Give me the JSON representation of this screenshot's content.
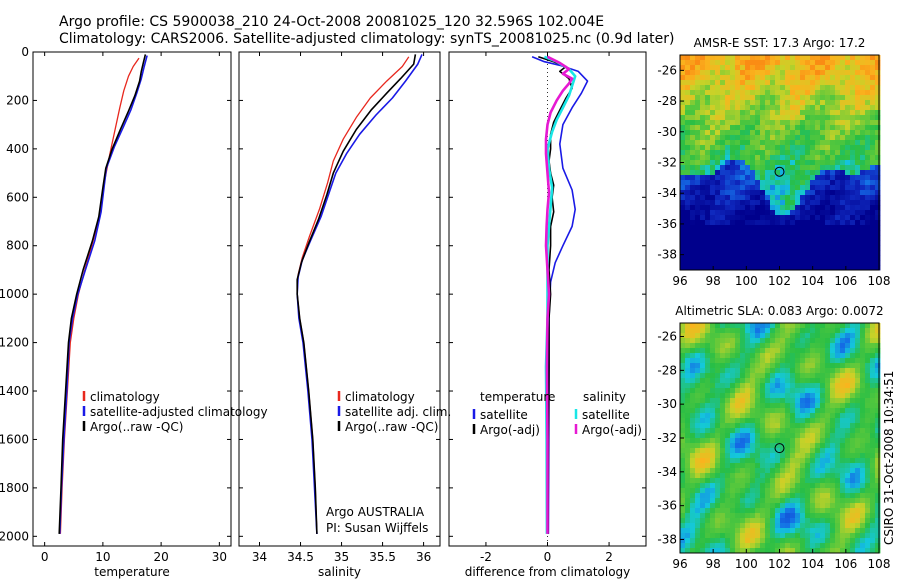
{
  "header": {
    "line1": "Argo profile: CS 5900038_210 24-Oct-2008 20081025_120 32.596S 102.004E",
    "line2": "Climatology: CARS2006. Satellite-adjusted climatology: synTS_20081025.nc (0.9d later)"
  },
  "credit": {
    "line1": "Argo AUSTRALIA",
    "line2": "PI: Susan Wijffels"
  },
  "side_stamp": "CSIRO 31-Oct-2008 10:34:51",
  "colors": {
    "red": "#e8281e",
    "blue": "#1a1ae6",
    "black": "#000000",
    "cyan": "#19e6e6",
    "magenta": "#e619d2"
  },
  "chart_data": [
    {
      "type": "line",
      "xlabel": "temperature",
      "xlim": [
        -2,
        32
      ],
      "xticks": [
        0,
        10,
        20,
        30
      ],
      "ylim": [
        2040,
        0
      ],
      "yticks": [
        0,
        200,
        400,
        600,
        800,
        1000,
        1200,
        1400,
        1600,
        1800,
        2000
      ],
      "legend": [
        "climatology",
        "satellite-adjusted climatology",
        "Argo(..raw -QC)"
      ],
      "series": [
        {
          "name": "climatology",
          "color": "red",
          "width": 1.3,
          "points": [
            [
              16.2,
              25
            ],
            [
              15.2,
              60
            ],
            [
              14.4,
              100
            ],
            [
              13.6,
              160
            ],
            [
              12.9,
              230
            ],
            [
              12.1,
              320
            ],
            [
              11.2,
              420
            ],
            [
              10.4,
              520
            ],
            [
              9.9,
              600
            ],
            [
              9.2,
              700
            ],
            [
              8.1,
              800
            ],
            [
              6.9,
              900
            ],
            [
              5.8,
              1000
            ],
            [
              5.0,
              1100
            ],
            [
              4.4,
              1200
            ],
            [
              3.9,
              1400
            ],
            [
              3.4,
              1600
            ],
            [
              3.0,
              1800
            ],
            [
              2.7,
              1990
            ]
          ]
        },
        {
          "name": "satellite-adjusted climatology",
          "color": "blue",
          "width": 1.6,
          "points": [
            [
              17.6,
              15
            ],
            [
              17.1,
              60
            ],
            [
              16.6,
              110
            ],
            [
              15.8,
              170
            ],
            [
              14.8,
              240
            ],
            [
              13.5,
              310
            ],
            [
              12.0,
              390
            ],
            [
              10.6,
              480
            ],
            [
              10.2,
              560
            ],
            [
              9.7,
              660
            ],
            [
              8.6,
              780
            ],
            [
              7.0,
              900
            ],
            [
              5.7,
              1000
            ],
            [
              4.8,
              1100
            ],
            [
              4.2,
              1200
            ],
            [
              3.8,
              1400
            ],
            [
              3.3,
              1600
            ],
            [
              2.9,
              1800
            ],
            [
              2.6,
              1990
            ]
          ]
        },
        {
          "name": "Argo(..raw -QC)",
          "color": "black",
          "width": 1.6,
          "points": [
            [
              17.3,
              10
            ],
            [
              17.0,
              40
            ],
            [
              16.6,
              80
            ],
            [
              16.3,
              120
            ],
            [
              15.5,
              180
            ],
            [
              14.3,
              250
            ],
            [
              13.0,
              320
            ],
            [
              11.6,
              400
            ],
            [
              10.5,
              480
            ],
            [
              10.0,
              560
            ],
            [
              9.3,
              680
            ],
            [
              8.2,
              780
            ],
            [
              6.6,
              900
            ],
            [
              5.5,
              1000
            ],
            [
              4.6,
              1100
            ],
            [
              4.1,
              1200
            ],
            [
              3.6,
              1400
            ],
            [
              3.1,
              1600
            ],
            [
              2.8,
              1800
            ],
            [
              2.5,
              1990
            ]
          ]
        }
      ]
    },
    {
      "type": "line",
      "xlabel": "salinity",
      "xlim": [
        33.75,
        36.2
      ],
      "xticks": [
        34,
        34.5,
        35,
        35.5,
        36
      ],
      "ylim": [
        2040,
        0
      ],
      "yticks": [],
      "legend": [
        "climatology",
        "satellite adj. clim.",
        "Argo(..raw -QC)"
      ],
      "series": [
        {
          "name": "climatology",
          "color": "red",
          "width": 1.3,
          "points": [
            [
              35.82,
              20
            ],
            [
              35.74,
              60
            ],
            [
              35.55,
              120
            ],
            [
              35.35,
              190
            ],
            [
              35.18,
              270
            ],
            [
              35.02,
              360
            ],
            [
              34.9,
              450
            ],
            [
              34.83,
              540
            ],
            [
              34.73,
              650
            ],
            [
              34.61,
              760
            ],
            [
              34.52,
              850
            ],
            [
              34.47,
              920
            ],
            [
              34.46,
              1000
            ],
            [
              34.49,
              1100
            ],
            [
              34.54,
              1200
            ],
            [
              34.6,
              1400
            ],
            [
              34.65,
              1600
            ],
            [
              34.68,
              1800
            ],
            [
              34.7,
              1990
            ]
          ]
        },
        {
          "name": "satellite adj. clim.",
          "color": "blue",
          "width": 1.6,
          "points": [
            [
              35.98,
              10
            ],
            [
              35.93,
              50
            ],
            [
              35.78,
              120
            ],
            [
              35.62,
              190
            ],
            [
              35.42,
              260
            ],
            [
              35.22,
              340
            ],
            [
              35.06,
              420
            ],
            [
              34.93,
              500
            ],
            [
              34.85,
              580
            ],
            [
              34.75,
              680
            ],
            [
              34.62,
              780
            ],
            [
              34.52,
              860
            ],
            [
              34.47,
              930
            ],
            [
              34.46,
              1000
            ],
            [
              34.48,
              1100
            ],
            [
              34.53,
              1200
            ],
            [
              34.59,
              1400
            ],
            [
              34.64,
              1600
            ],
            [
              34.67,
              1800
            ],
            [
              34.7,
              1990
            ]
          ]
        },
        {
          "name": "Argo(..raw -QC)",
          "color": "black",
          "width": 1.6,
          "points": [
            [
              35.9,
              10
            ],
            [
              35.88,
              50
            ],
            [
              35.72,
              110
            ],
            [
              35.55,
              170
            ],
            [
              35.36,
              240
            ],
            [
              35.18,
              320
            ],
            [
              35.02,
              410
            ],
            [
              34.9,
              500
            ],
            [
              34.82,
              590
            ],
            [
              34.72,
              690
            ],
            [
              34.6,
              790
            ],
            [
              34.51,
              870
            ],
            [
              34.46,
              940
            ],
            [
              34.46,
              1000
            ],
            [
              34.49,
              1100
            ],
            [
              34.54,
              1200
            ],
            [
              34.6,
              1400
            ],
            [
              34.65,
              1600
            ],
            [
              34.68,
              1800
            ],
            [
              34.7,
              1990
            ]
          ]
        }
      ]
    },
    {
      "type": "line",
      "xlabel": "difference from climatology",
      "xlim": [
        -3.2,
        3.2
      ],
      "xticks": [
        -2,
        0,
        2
      ],
      "ylim": [
        2040,
        0
      ],
      "yticks": [],
      "legend_temperature_title": "temperature",
      "legend_salinity_title": "salinity",
      "legend_temperature": [
        "satellite",
        "Argo(-adj)"
      ],
      "legend_salinity": [
        "satellite",
        "Argo(-adj)"
      ],
      "series": [
        {
          "name": "temperature satellite",
          "color": "blue",
          "width": 1.6,
          "points": [
            [
              -0.5,
              20
            ],
            [
              -0.1,
              40
            ],
            [
              0.4,
              55
            ],
            [
              1.0,
              80
            ],
            [
              1.3,
              120
            ],
            [
              1.1,
              170
            ],
            [
              0.8,
              230
            ],
            [
              0.5,
              300
            ],
            [
              0.4,
              380
            ],
            [
              0.5,
              480
            ],
            [
              0.8,
              570
            ],
            [
              0.9,
              650
            ],
            [
              0.8,
              720
            ],
            [
              0.5,
              800
            ],
            [
              0.25,
              870
            ],
            [
              0.1,
              950
            ],
            [
              0.05,
              1100
            ],
            [
              0.05,
              1400
            ],
            [
              0.04,
              1700
            ],
            [
              0.03,
              1990
            ]
          ]
        },
        {
          "name": "temperature Argo(-adj)",
          "color": "black",
          "width": 1.6,
          "points": [
            [
              -0.3,
              20
            ],
            [
              0.2,
              40
            ],
            [
              0.6,
              60
            ],
            [
              0.4,
              80
            ],
            [
              0.7,
              110
            ],
            [
              0.8,
              150
            ],
            [
              0.6,
              190
            ],
            [
              0.4,
              240
            ],
            [
              0.2,
              290
            ],
            [
              0.1,
              340
            ],
            [
              0.1,
              400
            ],
            [
              0.05,
              450
            ],
            [
              0.1,
              500
            ],
            [
              0.2,
              550
            ],
            [
              0.15,
              600
            ],
            [
              0.2,
              660
            ],
            [
              0.1,
              720
            ],
            [
              0.1,
              800
            ],
            [
              0.05,
              900
            ],
            [
              0.1,
              1000
            ],
            [
              0.05,
              1100
            ],
            [
              0.05,
              1300
            ],
            [
              0.03,
              1600
            ],
            [
              0.02,
              1990
            ]
          ]
        },
        {
          "name": "salinity satellite",
          "color": "cyan",
          "width": 2.6,
          "points": [
            [
              -0.1,
              20
            ],
            [
              0.3,
              40
            ],
            [
              0.7,
              70
            ],
            [
              0.9,
              100
            ],
            [
              0.8,
              140
            ],
            [
              0.7,
              180
            ],
            [
              0.5,
              230
            ],
            [
              0.3,
              280
            ],
            [
              0.15,
              330
            ],
            [
              0.0,
              400
            ],
            [
              0.05,
              480
            ],
            [
              0.15,
              560
            ],
            [
              0.1,
              640
            ],
            [
              0.05,
              720
            ],
            [
              0.0,
              800
            ],
            [
              0.0,
              900
            ],
            [
              0.0,
              1000
            ],
            [
              0.0,
              1100
            ],
            [
              -0.05,
              1300
            ],
            [
              -0.03,
              1600
            ],
            [
              -0.02,
              1990
            ]
          ]
        },
        {
          "name": "salinity Argo(-adj)",
          "color": "magenta",
          "width": 2.6,
          "points": [
            [
              0.0,
              20
            ],
            [
              0.4,
              45
            ],
            [
              0.7,
              70
            ],
            [
              0.5,
              90
            ],
            [
              0.8,
              110
            ],
            [
              0.7,
              130
            ],
            [
              0.5,
              160
            ],
            [
              0.3,
              200
            ],
            [
              0.1,
              250
            ],
            [
              0.0,
              300
            ],
            [
              -0.05,
              360
            ],
            [
              -0.05,
              420
            ],
            [
              0.0,
              500
            ],
            [
              0.05,
              580
            ],
            [
              0.0,
              650
            ],
            [
              -0.03,
              720
            ],
            [
              -0.05,
              800
            ],
            [
              0.0,
              900
            ],
            [
              0.05,
              1000
            ],
            [
              0.0,
              1100
            ],
            [
              -0.02,
              1300
            ],
            [
              0.0,
              1600
            ],
            [
              0.0,
              1990
            ]
          ]
        }
      ]
    },
    {
      "type": "heatmap",
      "title": "AMSR-E SST: 17.3 Argo: 17.2",
      "xlim": [
        96,
        108
      ],
      "ylim": [
        -39,
        -25
      ],
      "xticks": [
        96,
        98,
        100,
        102,
        104,
        106,
        108
      ],
      "yticks": [
        -26,
        -28,
        -30,
        -32,
        -34,
        -36,
        -38
      ],
      "marker": [
        102.0,
        -32.6
      ]
    },
    {
      "type": "heatmap",
      "title": "Altimetric SLA: 0.083 Argo: 0.0072",
      "xlim": [
        96,
        108
      ],
      "ylim": [
        -38.8,
        -25.2
      ],
      "xticks": [
        96,
        98,
        100,
        102,
        104,
        106,
        108
      ],
      "yticks": [
        -26,
        -28,
        -30,
        -32,
        -34,
        -36,
        -38
      ],
      "marker": [
        102.0,
        -32.6
      ]
    }
  ]
}
